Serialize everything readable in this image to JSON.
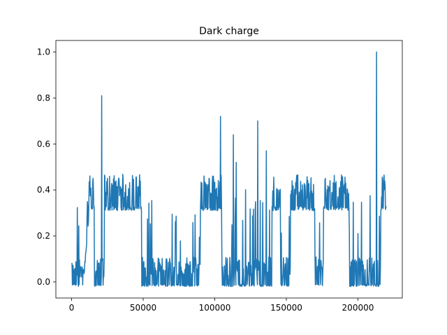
{
  "chart_data": {
    "type": "line",
    "title": "Dark charge",
    "xlabel": "",
    "ylabel": "",
    "xlim": [
      -11000,
      231000
    ],
    "ylim": [
      -0.07,
      1.05
    ],
    "x_ticks": [
      0,
      50000,
      100000,
      150000,
      200000
    ],
    "x_tick_labels": [
      "0",
      "50000",
      "100000",
      "150000",
      "200000"
    ],
    "y_ticks": [
      0.0,
      0.2,
      0.4,
      0.6,
      0.8,
      1.0
    ],
    "y_tick_labels": [
      "0.0",
      "0.2",
      "0.4",
      "0.6",
      "0.8",
      "1.0"
    ],
    "grid": false,
    "color": "#1f77b4",
    "segments": [
      {
        "x0": 0,
        "x1": 8000,
        "state": "low"
      },
      {
        "x0": 8000,
        "x1": 12000,
        "state": "rise"
      },
      {
        "x0": 12000,
        "x1": 16000,
        "state": "high"
      },
      {
        "x0": 16000,
        "x1": 23000,
        "state": "low"
      },
      {
        "x0": 23000,
        "x1": 49000,
        "state": "high"
      },
      {
        "x0": 49000,
        "x1": 90000,
        "state": "low"
      },
      {
        "x0": 90000,
        "x1": 105000,
        "state": "high"
      },
      {
        "x0": 105000,
        "x1": 140000,
        "state": "low"
      },
      {
        "x0": 140000,
        "x1": 146000,
        "state": "high"
      },
      {
        "x0": 146000,
        "x1": 153000,
        "state": "low"
      },
      {
        "x0": 153000,
        "x1": 170000,
        "state": "high"
      },
      {
        "x0": 170000,
        "x1": 176000,
        "state": "low"
      },
      {
        "x0": 176000,
        "x1": 194000,
        "state": "high"
      },
      {
        "x0": 194000,
        "x1": 216000,
        "state": "low"
      },
      {
        "x0": 216000,
        "x1": 220000,
        "state": "high"
      }
    ],
    "spikes": [
      {
        "x": 21000,
        "y": 0.81
      },
      {
        "x": 104000,
        "y": 0.72
      },
      {
        "x": 113000,
        "y": 0.64
      },
      {
        "x": 115000,
        "y": 0.52
      },
      {
        "x": 130000,
        "y": 0.7
      },
      {
        "x": 136000,
        "y": 0.57
      },
      {
        "x": 213000,
        "y": 1.0
      }
    ]
  }
}
